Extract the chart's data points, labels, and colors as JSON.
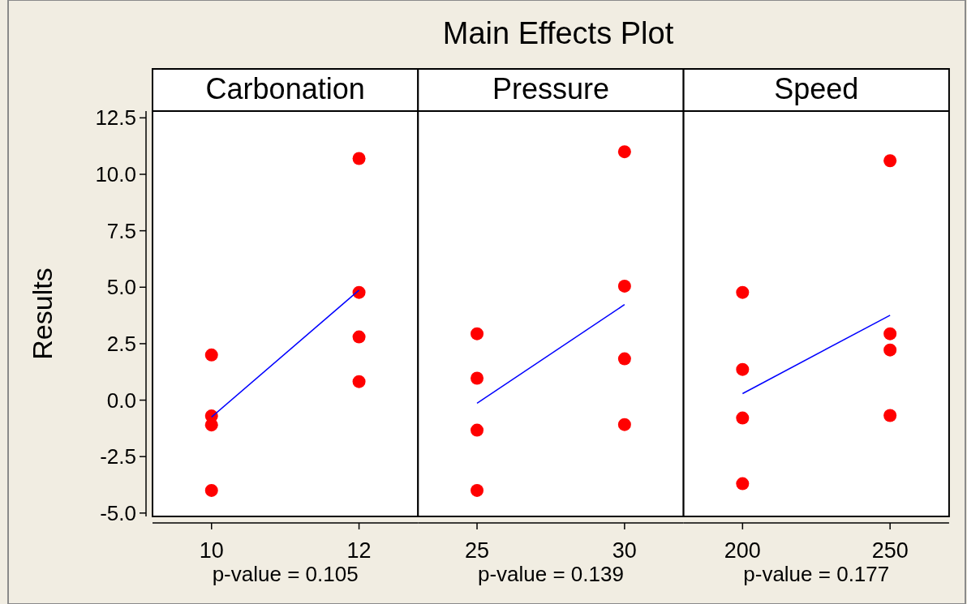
{
  "chart_data": [
    {
      "type": "scatter",
      "title": "Carbonation",
      "xlabel": "p-value = 0.105",
      "ylabel": "Results",
      "annotations": [
        "Main Effects Plot"
      ],
      "categories": [
        "10",
        "12"
      ],
      "ylim": [
        -5.15,
        12.8
      ],
      "yticks": [
        {
          "value": -5,
          "label": "-5.0"
        },
        {
          "value": -2.5,
          "label": "-2.5"
        },
        {
          "value": 0,
          "label": "0.0"
        },
        2.5,
        {
          "value": 5,
          "label": "5.0"
        },
        7.5,
        {
          "value": 10,
          "label": "10.0"
        },
        12.5
      ],
      "series": [
        {
          "marker": "circle",
          "color": "#ff0000",
          "x": [
            "10",
            "10",
            "10",
            "10",
            "12",
            "12",
            "12",
            "12"
          ],
          "values": [
            2.0,
            -0.7,
            -1.1,
            -4.0,
            10.7,
            4.77,
            2.8,
            0.82
          ]
        },
        {
          "type": "line",
          "color": "#0000ff",
          "values": [
            -0.75,
            4.87
          ]
        }
      ]
    },
    {
      "type": "scatter",
      "title": "Pressure",
      "xlabel": "p-value = 0.139",
      "tick_labels": "x",
      "categories": [
        "25",
        "30"
      ],
      "ylim": [
        -5.15,
        12.8
      ],
      "series": [
        {
          "marker": "circle",
          "color": "#ff0000",
          "x": [
            "25",
            "25",
            "25",
            "25",
            "30",
            "30",
            "30",
            "30"
          ],
          "values": [
            2.94,
            0.97,
            -1.33,
            -4.0,
            11.0,
            5.05,
            1.83,
            -1.08
          ]
        },
        {
          "type": "line",
          "color": "#0000ff",
          "values": [
            -0.14,
            4.23
          ]
        }
      ]
    },
    {
      "type": "scatter",
      "title": "Speed",
      "xlabel": "p-value = 0.177",
      "tick_labels": "x",
      "categories": [
        "200",
        "250"
      ],
      "ylim": [
        -5.15,
        12.8
      ],
      "series": [
        {
          "marker": "circle",
          "color": "#ff0000",
          "x": [
            "200",
            "200",
            "200",
            "200",
            "250",
            "250",
            "250",
            "250"
          ],
          "values": [
            4.77,
            1.36,
            -0.79,
            -3.7,
            10.6,
            2.94,
            2.22,
            -0.68
          ]
        },
        {
          "type": "line",
          "color": "#0000ff",
          "values": [
            0.29,
            3.76
          ]
        }
      ]
    }
  ]
}
